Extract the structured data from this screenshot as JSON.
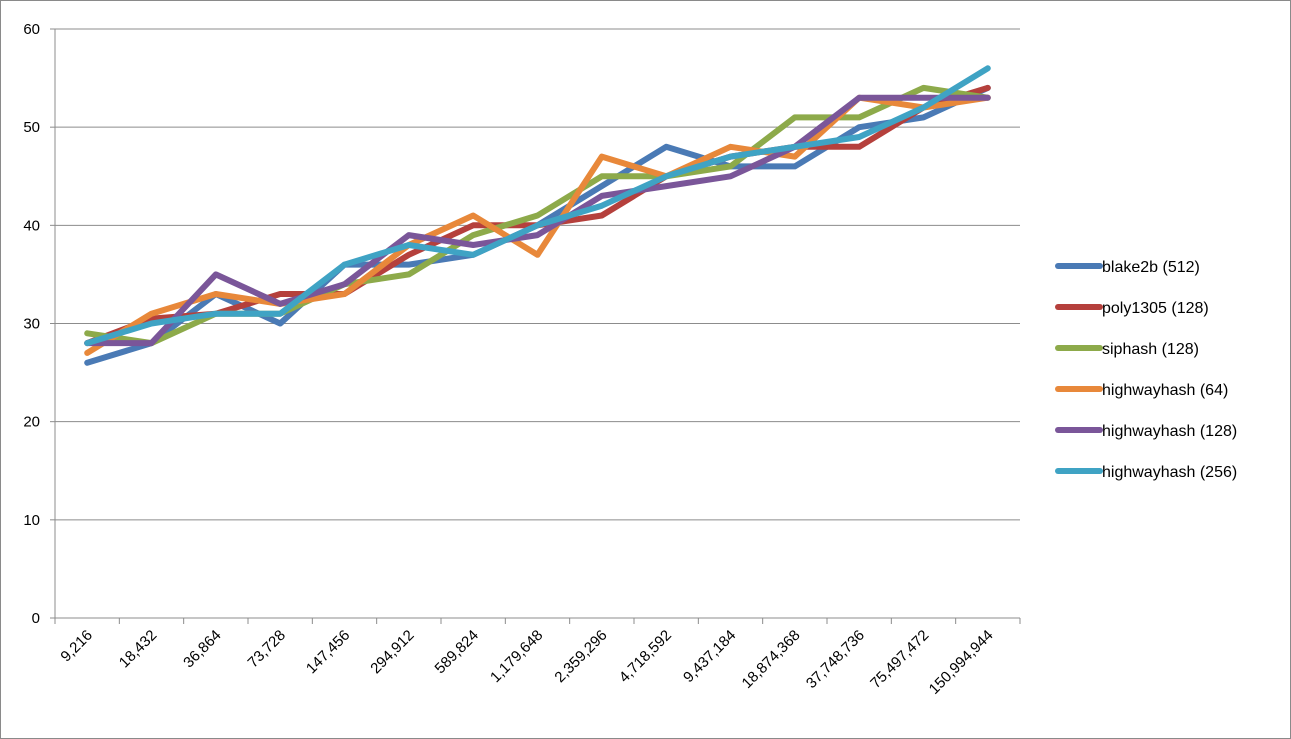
{
  "chart_data": {
    "type": "line",
    "title": "",
    "xlabel": "",
    "ylabel": "",
    "ylim": [
      0,
      60
    ],
    "yticks": [
      "0",
      "10",
      "20",
      "30",
      "40",
      "50",
      "60"
    ],
    "grid": true,
    "legend_position": "right",
    "categories": [
      "9,216",
      "18,432",
      "36,864",
      "73,728",
      "147,456",
      "294,912",
      "589,824",
      "1,179,648",
      "2,359,296",
      "4,718,592",
      "9,437,184",
      "18,874,368",
      "37,748,736",
      "75,497,472",
      "150,994,944"
    ],
    "series": [
      {
        "name": "blake2b (512)",
        "color": "#4a7ab5",
        "values": [
          26,
          28,
          33,
          30,
          36,
          36,
          37,
          40,
          44,
          48,
          46,
          46,
          50,
          51,
          54
        ]
      },
      {
        "name": "poly1305 (128)",
        "color": "#b5403c",
        "values": [
          28,
          30.5,
          31,
          33,
          33,
          37,
          40,
          40,
          41,
          45,
          47,
          48,
          48,
          52,
          54
        ]
      },
      {
        "name": "siphash (128)",
        "color": "#8daa4a",
        "values": [
          29,
          28,
          31,
          31,
          34,
          35,
          39,
          41,
          45,
          45,
          46,
          51,
          51,
          54,
          53
        ]
      },
      {
        "name": "highwayhash (64)",
        "color": "#e8883a",
        "values": [
          27,
          31,
          33,
          32,
          33,
          38,
          41,
          37,
          47,
          45,
          48,
          47,
          53,
          52,
          53
        ]
      },
      {
        "name": "highwayhash (128)",
        "color": "#7a5699",
        "values": [
          28,
          28,
          35,
          32,
          34,
          39,
          38,
          39,
          43,
          44,
          45,
          48,
          53,
          53,
          53
        ]
      },
      {
        "name": "highwayhash (256)",
        "color": "#3fa3c4",
        "values": [
          28,
          30,
          31,
          31,
          36,
          38,
          37,
          40,
          42,
          45,
          47,
          48,
          49,
          52,
          56
        ]
      }
    ]
  }
}
